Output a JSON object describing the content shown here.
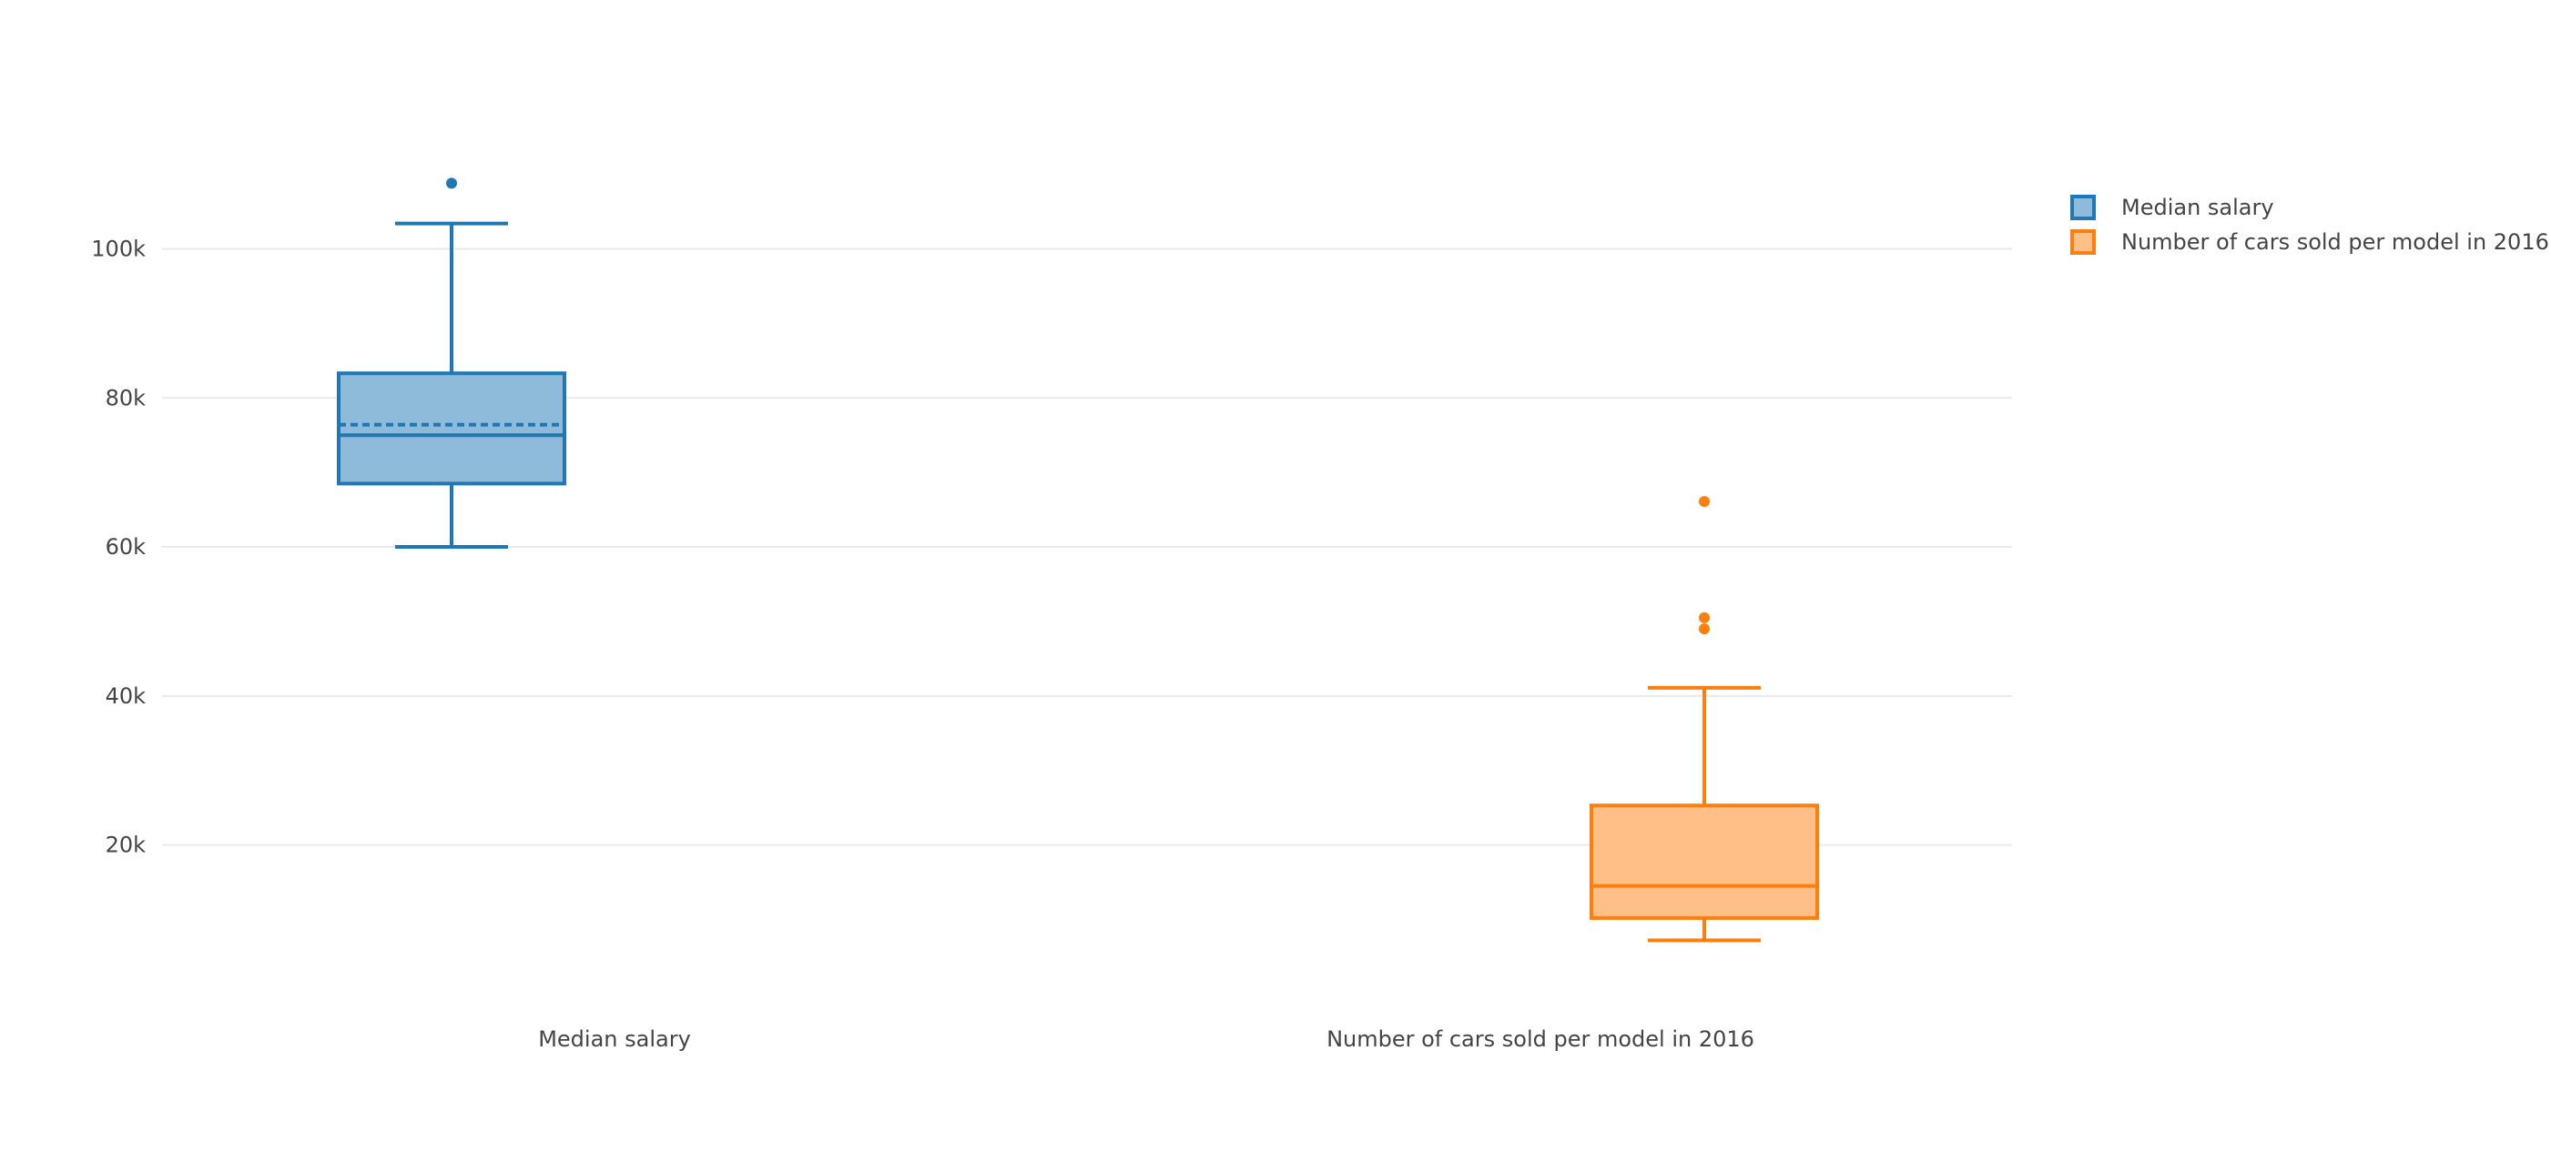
{
  "chart_data": {
    "type": "box",
    "title": "",
    "xlabel": "",
    "ylabel": "",
    "y_ticks": [
      20000,
      40000,
      60000,
      80000,
      100000
    ],
    "y_tick_labels": [
      "20k",
      "40k",
      "60k",
      "80k",
      "100k"
    ],
    "grid": true,
    "legend_position": "top-right",
    "series": [
      {
        "name": "Median salary",
        "category": "Median salary",
        "color": "#1f77b4",
        "fill": "#8fbbdb",
        "q1": 68500,
        "median": 75000,
        "mean": 76400,
        "q3": 83300,
        "lower_whisker": 60000,
        "upper_whisker": 103400,
        "outliers": [
          108800
        ]
      },
      {
        "name": "Number of cars sold per model in 2016",
        "category": "Number of cars sold per model in 2016",
        "color": "#ff7f0e",
        "fill": "#ffbf86",
        "q1": 10200,
        "median": 14500,
        "q3": 25300,
        "lower_whisker": 7200,
        "upper_whisker": 41100,
        "outliers": [
          49000,
          50500,
          66100
        ]
      }
    ]
  }
}
